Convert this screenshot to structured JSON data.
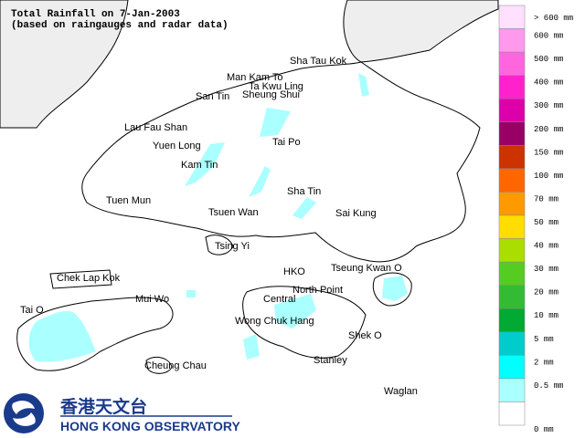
{
  "title": [
    "Total Rainfall on 7-Jan-2003",
    "(based on raingauges and radar data)"
  ],
  "places": [
    {
      "label": "Sha Tau Kok"
    },
    {
      "label": "Man Kam To"
    },
    {
      "label": "Ta Kwu Ling"
    },
    {
      "label": "San Tin"
    },
    {
      "label": "Sheung Shui"
    },
    {
      "label": "Lau Fau Shan"
    },
    {
      "label": "Yuen Long"
    },
    {
      "label": "Tai Po"
    },
    {
      "label": "Kam Tin"
    },
    {
      "label": "Sha Tin"
    },
    {
      "label": "Tuen Mun"
    },
    {
      "label": "Tsuen Wan"
    },
    {
      "label": "Sai Kung"
    },
    {
      "label": "Tsing Yi"
    },
    {
      "label": "Chek Lap Kok"
    },
    {
      "label": "HKO"
    },
    {
      "label": "Tseung Kwan O"
    },
    {
      "label": "Mui Wo"
    },
    {
      "label": "North Point"
    },
    {
      "label": "Central"
    },
    {
      "label": "Tai O"
    },
    {
      "label": "Wong Chuk Hang"
    },
    {
      "label": "Shek O"
    },
    {
      "label": "Cheung Chau"
    },
    {
      "label": "Stanley"
    },
    {
      "label": "Waglan"
    }
  ],
  "legend": [
    {
      "label": "> 600 mm",
      "color": "#ffe0ff"
    },
    {
      "label": "600 mm",
      "color": "#ff99ee"
    },
    {
      "label": "500 mm",
      "color": "#ff66dd"
    },
    {
      "label": "400 mm",
      "color": "#ff22cc"
    },
    {
      "label": "300 mm",
      "color": "#dd00aa"
    },
    {
      "label": "200 mm",
      "color": "#990066"
    },
    {
      "label": "150 mm",
      "color": "#cc3300"
    },
    {
      "label": "100 mm",
      "color": "#ff6600"
    },
    {
      "label": "70 mm",
      "color": "#ff9900"
    },
    {
      "label": "50 mm",
      "color": "#ffdd00"
    },
    {
      "label": "40 mm",
      "color": "#aadd00"
    },
    {
      "label": "30 mm",
      "color": "#55cc22"
    },
    {
      "label": "20 mm",
      "color": "#33bb33"
    },
    {
      "label": "10 mm",
      "color": "#00aa33"
    },
    {
      "label": "5 mm",
      "color": "#00cccc"
    },
    {
      "label": "2 mm",
      "color": "#00ffff"
    },
    {
      "label": "0.5 mm",
      "color": "#aaffff"
    },
    {
      "label": "0 mm",
      "color": "#ffffff"
    }
  ],
  "logo": {
    "chinese": "香港天文台",
    "english": "HONG KONG OBSERVATORY"
  }
}
